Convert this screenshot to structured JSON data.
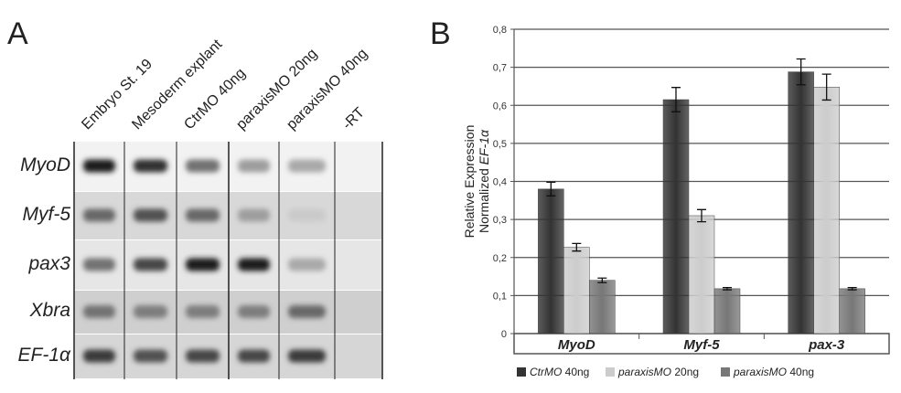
{
  "panel_a": {
    "letter": "A",
    "lanes": [
      "Embryo St. 19",
      "Mesoderm explant",
      "CtrMO 40ng",
      "paraxisMO 20ng",
      "paraxisMO 40ng",
      "-RT"
    ],
    "rows": [
      "MyoD",
      "Myf-5",
      "pax3",
      "Xbra",
      "EF-1α"
    ],
    "row_backgrounds": [
      "#f2f2f2",
      "#d8d8d8",
      "#e6e6e6",
      "#cfcfcf",
      "#d6d6d6"
    ],
    "band_intensity": [
      [
        0.95,
        0.85,
        0.55,
        0.35,
        0.3,
        0
      ],
      [
        0.6,
        0.7,
        0.6,
        0.35,
        0.15,
        0
      ],
      [
        0.55,
        0.75,
        0.95,
        0.95,
        0.3,
        0
      ],
      [
        0.55,
        0.5,
        0.5,
        0.5,
        0.6,
        0
      ],
      [
        0.8,
        0.7,
        0.75,
        0.75,
        0.8,
        0
      ]
    ]
  },
  "panel_b": {
    "letter": "B"
  },
  "chart_data": {
    "type": "bar",
    "categories": [
      "MyoD",
      "Myf-5",
      "pax-3"
    ],
    "series": [
      {
        "name": "CtrMO 40ng",
        "values": [
          0.38,
          0.615,
          0.688
        ],
        "errors": [
          0.018,
          0.032,
          0.034
        ],
        "color": "#333333"
      },
      {
        "name": "paraxisMO 20ng",
        "values": [
          0.227,
          0.31,
          0.648
        ],
        "errors": [
          0.01,
          0.016,
          0.034
        ],
        "color": "#cccccc"
      },
      {
        "name": "paraxisMO 40ng",
        "values": [
          0.14,
          0.118,
          0.118
        ],
        "errors": [
          0.006,
          0.003,
          0.003
        ],
        "color": "#777777"
      }
    ],
    "legend_names_italic": [
      "CtrMO",
      "paraxisMO",
      "paraxisMO"
    ],
    "legend_names_rest": [
      " 40ng",
      " 20ng",
      " 40ng"
    ],
    "ylabel_line1": "Relative Expression",
    "ylabel_line2": "Normalized ",
    "ylabel_italic": "EF-1α",
    "ylim": [
      0,
      0.8
    ],
    "yticks": [
      "0",
      "0,1",
      "0,2",
      "0,3",
      "0,4",
      "0,5",
      "0,6",
      "0,7",
      "0,8"
    ],
    "grid": true,
    "legend_position": "bottom"
  }
}
